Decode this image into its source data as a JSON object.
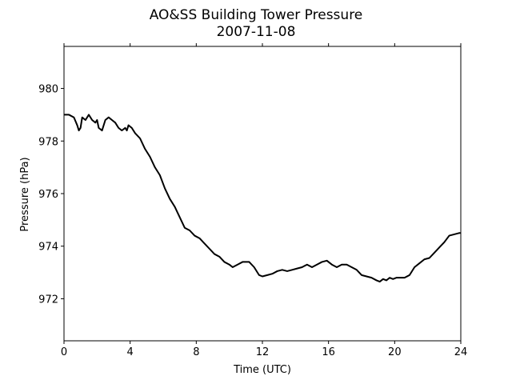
{
  "chart_data": {
    "type": "line",
    "title": "AO&SS Building Tower Pressure",
    "subtitle": "2007-11-08",
    "xlabel": "Time (UTC)",
    "ylabel": "Pressure (hPa)",
    "xlim": [
      0,
      24
    ],
    "ylim": [
      970.4,
      981.6
    ],
    "xticks": [
      0,
      4,
      8,
      12,
      16,
      20,
      24
    ],
    "yticks": [
      972,
      974,
      976,
      978,
      980
    ],
    "grid": false,
    "series": [
      {
        "color": "#000000",
        "x": [
          0,
          0.3,
          0.6,
          0.8,
          0.9,
          1.0,
          1.1,
          1.3,
          1.5,
          1.7,
          1.9,
          2.0,
          2.1,
          2.3,
          2.5,
          2.7,
          2.9,
          3.1,
          3.3,
          3.5,
          3.7,
          3.8,
          3.9,
          4.1,
          4.3,
          4.6,
          4.9,
          5.2,
          5.5,
          5.8,
          6.1,
          6.4,
          6.7,
          7.0,
          7.3,
          7.6,
          7.9,
          8.2,
          8.5,
          8.8,
          9.1,
          9.4,
          9.7,
          10.0,
          10.2,
          10.5,
          10.8,
          11.2,
          11.5,
          11.8,
          12.0,
          12.3,
          12.6,
          12.9,
          13.2,
          13.5,
          13.8,
          14.1,
          14.4,
          14.7,
          15.0,
          15.3,
          15.6,
          15.9,
          16.2,
          16.5,
          16.8,
          17.1,
          17.4,
          17.7,
          18.0,
          18.3,
          18.6,
          18.9,
          19.1,
          19.3,
          19.5,
          19.7,
          19.9,
          20.1,
          20.3,
          20.6,
          20.9,
          21.2,
          21.5,
          21.8,
          22.1,
          22.4,
          22.7,
          23.0,
          23.3,
          23.6,
          23.9,
          24
        ],
        "values": [
          979.0,
          979.0,
          978.9,
          978.6,
          978.4,
          978.5,
          978.9,
          978.8,
          979.0,
          978.8,
          978.7,
          978.8,
          978.5,
          978.4,
          978.8,
          978.9,
          978.8,
          978.7,
          978.5,
          978.4,
          978.5,
          978.4,
          978.6,
          978.5,
          978.3,
          978.1,
          977.7,
          977.4,
          977.0,
          976.7,
          976.2,
          975.8,
          975.5,
          975.1,
          974.7,
          974.6,
          974.4,
          974.3,
          974.1,
          973.9,
          973.7,
          973.6,
          973.4,
          973.3,
          973.2,
          973.3,
          973.4,
          973.4,
          973.2,
          972.9,
          972.85,
          972.9,
          972.95,
          973.05,
          973.1,
          973.05,
          973.1,
          973.15,
          973.2,
          973.3,
          973.2,
          973.3,
          973.4,
          973.45,
          973.3,
          973.2,
          973.3,
          973.3,
          973.2,
          973.1,
          972.9,
          972.85,
          972.8,
          972.7,
          972.65,
          972.75,
          972.7,
          972.8,
          972.75,
          972.8,
          972.8,
          972.8,
          972.9,
          973.2,
          973.35,
          973.5,
          973.55,
          973.75,
          973.95,
          974.15,
          974.4,
          974.45,
          974.5,
          974.5
        ]
      }
    ]
  }
}
